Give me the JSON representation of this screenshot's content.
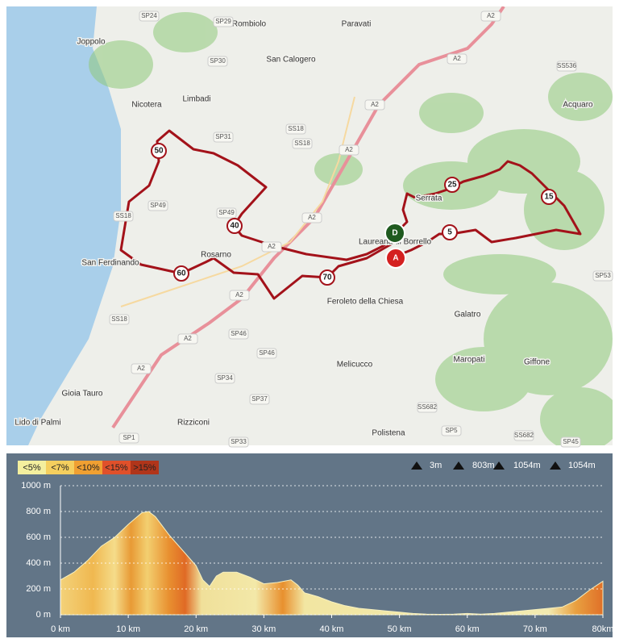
{
  "map": {
    "places": [
      "Joppolo",
      "Rombiolo",
      "Paravati",
      "San Calogero",
      "Nicotera",
      "Limbadi",
      "Acquaro",
      "Serrata",
      "Laureana di Borrello",
      "San Ferdinando",
      "Rosarno",
      "Feroleto della Chiesa",
      "Galatro",
      "Maropati",
      "Giffone",
      "Melicucco",
      "Gioia Tauro",
      "Lido di Palmi",
      "Rizziconi",
      "Polistena"
    ],
    "roads": [
      "SP24",
      "SP29",
      "SP30",
      "SS18",
      "SS18",
      "SP31",
      "A2",
      "A2",
      "A2",
      "A2",
      "SS536",
      "SP49",
      "SP49",
      "SS18",
      "A2",
      "A2",
      "A2",
      "SS18",
      "A2",
      "SP46",
      "SP46",
      "A2",
      "SP34",
      "SP37",
      "SS682",
      "SP5",
      "SS682",
      "SP45",
      "SP1",
      "SP33",
      "SP53"
    ],
    "km_markers": [
      "5",
      "15",
      "25",
      "40",
      "50",
      "60",
      "70"
    ],
    "start": "A",
    "end": "D"
  },
  "profile": {
    "legend": [
      "<5%",
      "<7%",
      "<10%",
      "<15%",
      ">15%"
    ],
    "stats": [
      "3m",
      "803m",
      "1054m",
      "1054m"
    ],
    "chart_data": {
      "type": "area",
      "x": [
        0,
        2,
        4,
        6,
        8,
        10,
        12,
        13,
        14,
        16,
        18,
        20,
        21,
        22,
        23,
        24,
        26,
        28,
        30,
        32,
        34,
        35,
        36,
        38,
        40,
        42,
        44,
        46,
        48,
        50,
        52,
        54,
        56,
        58,
        60,
        62,
        64,
        66,
        68,
        70,
        72,
        74,
        76,
        78,
        80
      ],
      "values": [
        270,
        330,
        420,
        530,
        600,
        700,
        790,
        800,
        760,
        620,
        500,
        380,
        270,
        220,
        300,
        330,
        330,
        290,
        240,
        250,
        270,
        230,
        170,
        140,
        100,
        70,
        50,
        40,
        30,
        20,
        10,
        5,
        3,
        5,
        10,
        5,
        10,
        20,
        30,
        40,
        50,
        60,
        110,
        190,
        260
      ],
      "xlim": [
        0,
        80
      ],
      "ylim": [
        0,
        1000
      ],
      "xticks": [
        {
          "value": 0,
          "label": "0 km"
        },
        {
          "value": 10,
          "label": "10 km"
        },
        {
          "value": 20,
          "label": "20 km"
        },
        {
          "value": 30,
          "label": "30 km"
        },
        {
          "value": 40,
          "label": "40 km"
        },
        {
          "value": 50,
          "label": "50 km"
        },
        {
          "value": 60,
          "label": "60 km"
        },
        {
          "value": 70,
          "label": "70 km"
        },
        {
          "value": 80,
          "label": "80km"
        }
      ],
      "yticks": [
        {
          "value": 0,
          "label": "0 m"
        },
        {
          "value": 200,
          "label": "200 m"
        },
        {
          "value": 400,
          "label": "400 m"
        },
        {
          "value": 600,
          "label": "600 m"
        },
        {
          "value": 800,
          "label": "800 m"
        },
        {
          "value": 1000,
          "label": "1000 m"
        }
      ],
      "grid": true
    }
  }
}
